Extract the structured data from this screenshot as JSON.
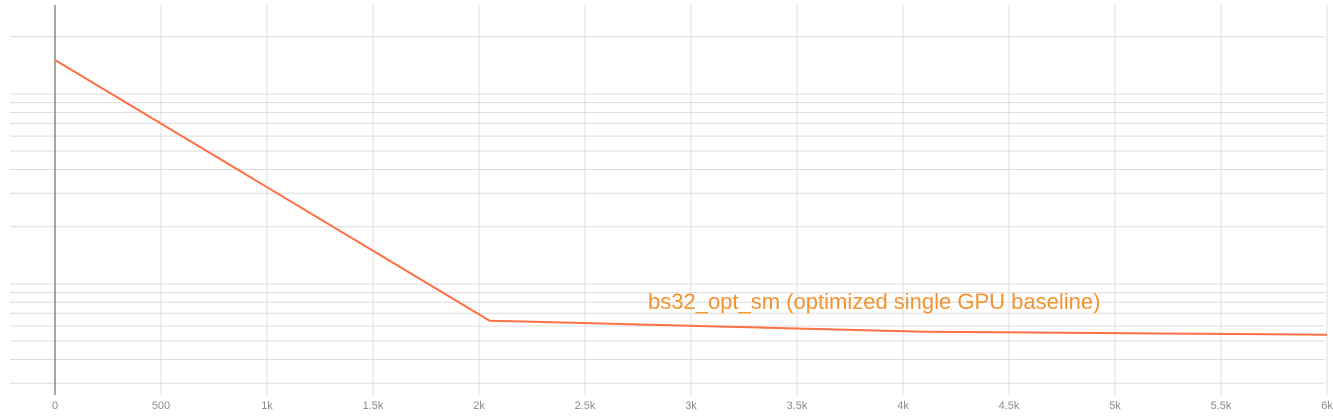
{
  "chart_data": {
    "type": "line",
    "x": [
      0,
      2050,
      4100,
      6000
    ],
    "series": [
      {
        "name": "bs32_opt_sm (optimized single GPU baseline)",
        "color": "#ff7043",
        "label_color": "#f5922f",
        "values": [
          151,
          6.4,
          5.6,
          5.4
        ]
      }
    ],
    "xlim": [
      0,
      6000
    ],
    "xticks": [
      0,
      500,
      {
        "value": 1000,
        "label": "1k"
      },
      {
        "value": 1500,
        "label": "1.5k"
      },
      {
        "value": 2000,
        "label": "2k"
      },
      {
        "value": 2500,
        "label": "2.5k"
      },
      {
        "value": 3000,
        "label": "3k"
      },
      {
        "value": 3500,
        "label": "3.5k"
      },
      {
        "value": 4000,
        "label": "4k"
      },
      {
        "value": 4500,
        "label": "4.5k"
      },
      {
        "value": 5000,
        "label": "5k"
      },
      {
        "value": 5500,
        "label": "5.5k"
      },
      {
        "value": 6000,
        "label": "6k"
      }
    ],
    "ylim": [
      2.6,
      294
    ],
    "yticks": [
      3,
      4,
      5,
      6,
      7,
      8,
      9,
      10,
      20,
      30,
      40,
      50,
      60,
      70,
      80,
      90,
      100,
      200
    ],
    "y_log": true,
    "grid": true
  }
}
